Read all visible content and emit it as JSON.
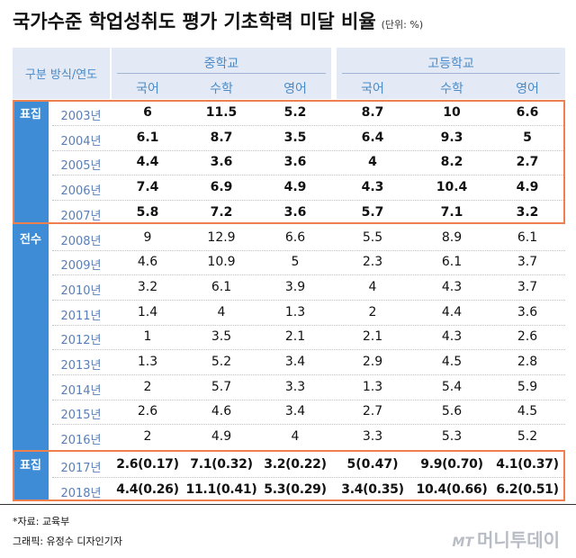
{
  "title": "국가수준 학업성취도 평가 기초학력 미달 비율",
  "unit": "(단위: %)",
  "header": {
    "row_label": "구분 방식/연도",
    "groups": [
      "중학교",
      "고등학교"
    ],
    "subjects": [
      "국어",
      "수학",
      "영어",
      "국어",
      "수학",
      "영어"
    ]
  },
  "sections": [
    {
      "label": "표집",
      "label_row": 0
    },
    {
      "label": "전수",
      "label_row": 5
    },
    {
      "label": "표집",
      "label_row": 14
    }
  ],
  "rows": [
    {
      "year": "2003년",
      "values": [
        "6",
        "11.5",
        "5.2",
        "8.7",
        "10",
        "6.6"
      ]
    },
    {
      "year": "2004년",
      "values": [
        "6.1",
        "8.7",
        "3.5",
        "6.4",
        "9.3",
        "5"
      ]
    },
    {
      "year": "2005년",
      "values": [
        "4.4",
        "3.6",
        "3.6",
        "4",
        "8.2",
        "2.7"
      ]
    },
    {
      "year": "2006년",
      "values": [
        "7.4",
        "6.9",
        "4.9",
        "4.3",
        "10.4",
        "4.9"
      ]
    },
    {
      "year": "2007년",
      "values": [
        "5.8",
        "7.2",
        "3.6",
        "5.7",
        "7.1",
        "3.2"
      ]
    },
    {
      "year": "2008년",
      "values": [
        "9",
        "12.9",
        "6.6",
        "5.5",
        "8.9",
        "6.1"
      ]
    },
    {
      "year": "2009년",
      "values": [
        "4.6",
        "10.9",
        "5",
        "2.3",
        "6.1",
        "3.7"
      ]
    },
    {
      "year": "2010년",
      "values": [
        "3.2",
        "6.1",
        "3.9",
        "4",
        "4.3",
        "3.7"
      ]
    },
    {
      "year": "2011년",
      "values": [
        "1.4",
        "4",
        "1.3",
        "2",
        "4.4",
        "3.6"
      ]
    },
    {
      "year": "2012년",
      "values": [
        "1",
        "3.5",
        "2.1",
        "2.1",
        "4.3",
        "2.6"
      ]
    },
    {
      "year": "2013년",
      "values": [
        "1.3",
        "5.2",
        "3.4",
        "2.9",
        "4.5",
        "2.8"
      ]
    },
    {
      "year": "2014년",
      "values": [
        "2",
        "5.7",
        "3.3",
        "1.3",
        "5.4",
        "5.9"
      ]
    },
    {
      "year": "2015년",
      "values": [
        "2.6",
        "4.6",
        "3.4",
        "2.7",
        "5.6",
        "4.5"
      ]
    },
    {
      "year": "2016년",
      "values": [
        "2",
        "4.9",
        "4",
        "3.3",
        "5.3",
        "5.2"
      ]
    },
    {
      "year": "2017년",
      "values": [
        "2.6(0.17)",
        "7.1(0.32)",
        "3.2(0.22)",
        "5(0.47)",
        "9.9(0.70)",
        "4.1(0.37)"
      ]
    },
    {
      "year": "2018년",
      "values": [
        "4.4(0.26)",
        "11.1(0.41)",
        "5.3(0.29)",
        "3.4(0.35)",
        "10.4(0.66)",
        "6.2(0.51)"
      ]
    }
  ],
  "bold_rows": [
    0,
    1,
    2,
    3,
    4,
    14,
    15
  ],
  "source": "*자료: 교육부",
  "credit": "그래픽: 유정수 디자인기자",
  "logo": {
    "mark": "MT",
    "name": "머니투데이"
  },
  "colors": {
    "accent": "#3e8bd6",
    "highlight_border": "#ee7f4f",
    "header_bg": "#e3eaf5",
    "header_text": "#4a8ac8"
  }
}
